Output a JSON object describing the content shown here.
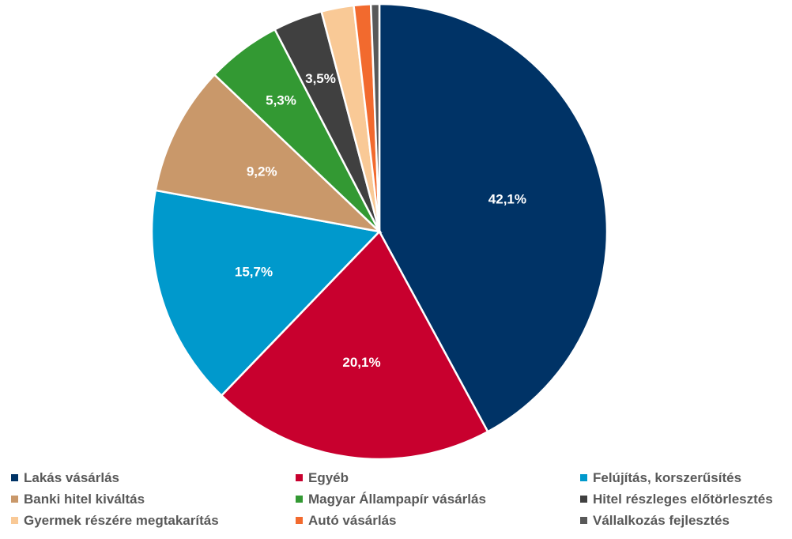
{
  "chart_data": {
    "type": "pie",
    "title": "",
    "legend_position": "bottom",
    "slices": [
      {
        "name": "Lakás vásárlás",
        "value": 42.1,
        "label": "42,1%",
        "color": "#003366"
      },
      {
        "name": "Egyéb",
        "value": 20.1,
        "label": "20,1%",
        "color": "#C8002E"
      },
      {
        "name": "Felújítás, korszerűsítés",
        "value": 15.7,
        "label": "15,7%",
        "color": "#0099CC"
      },
      {
        "name": "Banki hitel kiváltás",
        "value": 9.2,
        "label": "9,2%",
        "color": "#C9986A"
      },
      {
        "name": "Magyar Állampapír vásárlás",
        "value": 5.3,
        "label": "5,3%",
        "color": "#339933"
      },
      {
        "name": "Hitel részleges előtörlesztés",
        "value": 3.5,
        "label": "3,5%",
        "color": "#404040"
      },
      {
        "name": "Gyermek részére megtakarítás",
        "value": 2.3,
        "label": "",
        "color": "#F9C996"
      },
      {
        "name": "Autó vásárlás",
        "value": 1.2,
        "label": "",
        "color": "#F26A2E"
      },
      {
        "name": "Vállalkozás fejlesztés",
        "value": 0.6,
        "label": "",
        "color": "#595959"
      }
    ]
  }
}
